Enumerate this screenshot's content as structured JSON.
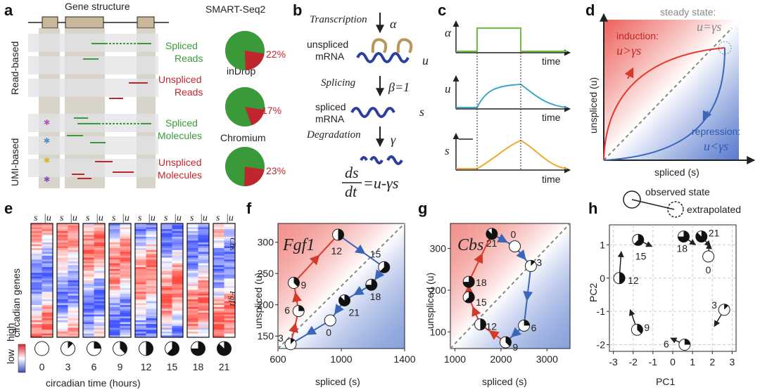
{
  "panel_labels": {
    "a": "a",
    "b": "b",
    "c": "c",
    "d": "d",
    "e": "e",
    "f": "f",
    "g": "g",
    "h": "h"
  },
  "panel_a": {
    "title": "Gene structure",
    "read_based": "Read-based",
    "umi_based": "UMI-based",
    "spliced_reads": [
      "Spliced",
      "Reads"
    ],
    "unspliced_reads": [
      "Unspliced",
      "Reads"
    ],
    "spliced_molecules": [
      "Spliced",
      "Molecules"
    ],
    "unspliced_molecules": [
      "Unspliced",
      "Molecules"
    ],
    "protocols": [
      {
        "name": "SMART-Seq2",
        "pct": "22%",
        "fraction": 0.22
      },
      {
        "name": "inDrop",
        "pct": "17%",
        "fraction": 0.17
      },
      {
        "name": "Chromium",
        "pct": "23%",
        "fraction": 0.23
      }
    ],
    "colors": {
      "spliced": "#3a9a3a",
      "unspliced": "#c0262d",
      "pie_green": "#3a9a3a",
      "pie_red": "#c0262d"
    }
  },
  "panel_b": {
    "transcription": "Transcription",
    "alpha": "α",
    "unspliced_mrna": [
      "unspliced",
      "mRNA"
    ],
    "u": "u",
    "splicing": "Splicing",
    "beta": "β=1",
    "spliced_mrna": [
      "spliced",
      "mRNA"
    ],
    "s": "s",
    "degradation": "Degradation",
    "gamma": "γ",
    "eq_num": "ds",
    "eq_den": "dt",
    "eq_rhs": "=u-γs"
  },
  "panel_c": {
    "alpha": "α",
    "u": "u",
    "s": "s",
    "time": "time"
  },
  "panel_d": {
    "steady_state": "steady state:",
    "steady_eq": "u=γs",
    "induction": "induction:",
    "induction_eq": "u>γs",
    "repression": "repression:",
    "repression_eq": "u<γs",
    "ylabel": "unspliced (u)",
    "xlabel": "spliced (s)"
  },
  "panel_e": {
    "ylabel": "circadian genes",
    "s": "s",
    "u": "u",
    "gene1": "Cbs",
    "gene2": "Fgf1",
    "legend_high": "high",
    "legend_low": "low",
    "times": [
      "0",
      "3",
      "6",
      "9",
      "12",
      "15",
      "18",
      "21"
    ],
    "xlabel": "circadian time (hours)"
  },
  "panel_f": {
    "gene": "Fgf1",
    "chart_data": {
      "type": "scatter",
      "xlabel": "spliced (s)",
      "ylabel": "unspliced (u)",
      "xlim": [
        600,
        1400
      ],
      "ylim": [
        130,
        330
      ],
      "xticks": [
        "600",
        "1000",
        "1400"
      ],
      "yticks": [
        "150",
        "200",
        "250",
        "300"
      ],
      "points": [
        {
          "t": "0",
          "x": 930,
          "y": 175
        },
        {
          "t": "3",
          "x": 680,
          "y": 137
        },
        {
          "t": "6",
          "x": 730,
          "y": 190
        },
        {
          "t": "9",
          "x": 700,
          "y": 235
        },
        {
          "t": "12",
          "x": 980,
          "y": 312
        },
        {
          "t": "15",
          "x": 1270,
          "y": 260
        },
        {
          "t": "18",
          "x": 1190,
          "y": 232
        },
        {
          "t": "21",
          "x": 1020,
          "y": 207
        }
      ]
    }
  },
  "panel_g": {
    "gene": "Cbs",
    "chart_data": {
      "type": "scatter",
      "xlabel": "spliced (s)",
      "ylabel": "unspliced (u)",
      "xlim": [
        900,
        3500
      ],
      "ylim": [
        60,
        360
      ],
      "xticks": [
        "1000",
        "2000",
        "3000"
      ],
      "yticks": [
        "100",
        "200",
        "300"
      ],
      "points": [
        {
          "t": "0",
          "x": 2300,
          "y": 305
        },
        {
          "t": "3",
          "x": 2650,
          "y": 258
        },
        {
          "t": "6",
          "x": 2500,
          "y": 115
        },
        {
          "t": "9",
          "x": 2100,
          "y": 75
        },
        {
          "t": "12",
          "x": 1550,
          "y": 118
        },
        {
          "t": "15",
          "x": 1300,
          "y": 183
        },
        {
          "t": "18",
          "x": 1300,
          "y": 220
        },
        {
          "t": "21",
          "x": 1800,
          "y": 335
        }
      ]
    }
  },
  "panel_h": {
    "observed": "observed state",
    "extrapolated": "extrapolated",
    "chart_data": {
      "type": "scatter",
      "xlabel": "PC1",
      "ylabel": "PC2",
      "xlim": [
        -3.2,
        3.2
      ],
      "ylim": [
        -2.2,
        1.6
      ],
      "xticks": [
        "-3",
        "-2",
        "-1",
        "0",
        "1",
        "2",
        "3"
      ],
      "yticks": [
        "-2",
        "-1",
        "0",
        "1"
      ],
      "points": [
        {
          "t": "0",
          "x": 1.8,
          "y": 0.65,
          "dx": 0.05,
          "dy": 0.4
        },
        {
          "t": "3",
          "x": 2.6,
          "y": -0.95,
          "dx": -0.5,
          "dy": -0.5
        },
        {
          "t": "6",
          "x": 0.6,
          "y": -2.0,
          "dx": -0.7,
          "dy": 0.2
        },
        {
          "t": "9",
          "x": -1.8,
          "y": -1.55,
          "dx": -0.35,
          "dy": 0.6
        },
        {
          "t": "12",
          "x": -2.7,
          "y": 0.0,
          "dx": 0.1,
          "dy": 0.8
        },
        {
          "t": "15",
          "x": -1.75,
          "y": 1.15,
          "dx": 0.7,
          "dy": -0.2
        },
        {
          "t": "18",
          "x": 0.55,
          "y": 1.25,
          "dx": 0.6,
          "dy": -0.25
        },
        {
          "t": "21",
          "x": 1.45,
          "y": 1.25,
          "dx": 0.45,
          "dy": -0.3
        }
      ]
    }
  }
}
